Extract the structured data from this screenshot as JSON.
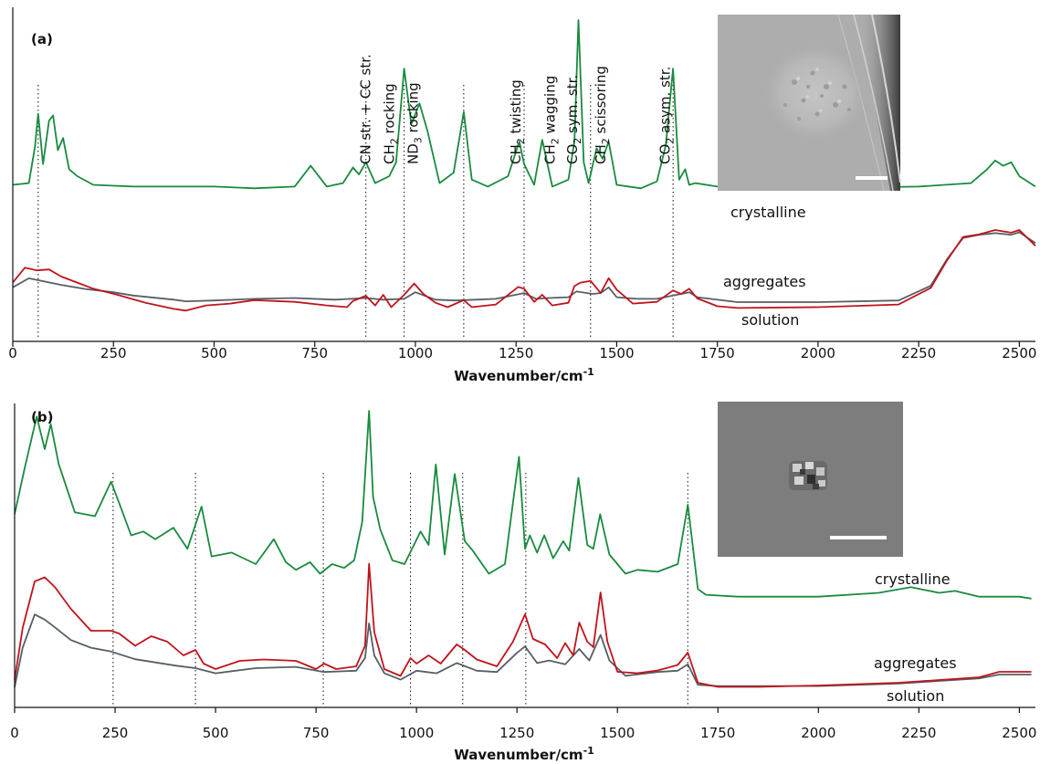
{
  "chart_data": [
    {
      "type": "line",
      "panel_label": "(a)",
      "xlabel": "Wavenumber/cm",
      "xlabel_sup": "-1",
      "ylabel": "",
      "xlim": [
        0,
        2540
      ],
      "ylim": [
        0,
        1
      ],
      "xticks": [
        0,
        250,
        500,
        750,
        1000,
        1250,
        1500,
        1750,
        2000,
        2250,
        2500
      ],
      "dotted_lines": [
        63,
        877,
        972,
        1120,
        1270,
        1435,
        1640
      ],
      "annotations": [
        {
          "at": 877,
          "text": "CN str. + CC str."
        },
        {
          "at": 935,
          "text": "CH",
          "sub": "2",
          "rest": " rocking"
        },
        {
          "at": 995,
          "text": "ND",
          "sub": "3",
          "rest": " rocking"
        },
        {
          "at": 1250,
          "text": "CH",
          "sub": "2",
          "rest": " twisting"
        },
        {
          "at": 1335,
          "text": "CH",
          "sub": "2",
          "rest": " wagging"
        },
        {
          "at": 1390,
          "text": "CO",
          "sub": "2",
          "rest": " sym. str."
        },
        {
          "at": 1460,
          "text": "CH",
          "sub": "2",
          "rest": " scissoring"
        },
        {
          "at": 1620,
          "text": "CO",
          "sub": "2",
          "rest": " asym. str."
        }
      ],
      "series": [
        {
          "name": "crystalline",
          "color": "#1a8a3f",
          "x": [
            0,
            40,
            55,
            63,
            75,
            90,
            100,
            112,
            125,
            140,
            160,
            200,
            300,
            400,
            500,
            600,
            700,
            740,
            780,
            820,
            845,
            860,
            877,
            900,
            935,
            952,
            972,
            990,
            1010,
            1030,
            1060,
            1095,
            1120,
            1140,
            1180,
            1230,
            1258,
            1270,
            1295,
            1315,
            1340,
            1380,
            1395,
            1405,
            1418,
            1430,
            1450,
            1465,
            1480,
            1500,
            1560,
            1600,
            1622,
            1640,
            1655,
            1670,
            1680,
            1695,
            1750,
            2000,
            2250,
            2380,
            2420,
            2440,
            2460,
            2480,
            2500,
            2540
          ],
          "values": [
            0.05,
            0.06,
            0.27,
            0.46,
            0.17,
            0.42,
            0.45,
            0.25,
            0.32,
            0.14,
            0.1,
            0.05,
            0.04,
            0.04,
            0.04,
            0.03,
            0.04,
            0.16,
            0.04,
            0.06,
            0.15,
            0.11,
            0.18,
            0.06,
            0.1,
            0.18,
            0.72,
            0.4,
            0.52,
            0.36,
            0.06,
            0.12,
            0.47,
            0.08,
            0.04,
            0.1,
            0.3,
            0.17,
            0.05,
            0.31,
            0.04,
            0.08,
            0.3,
            1.0,
            0.18,
            0.06,
            0.26,
            0.2,
            0.3,
            0.05,
            0.03,
            0.07,
            0.28,
            0.72,
            0.08,
            0.14,
            0.05,
            0.06,
            0.04,
            0.03,
            0.04,
            0.06,
            0.14,
            0.19,
            0.16,
            0.18,
            0.1,
            0.04
          ]
        },
        {
          "name": "aggregates",
          "color": "#c0141c",
          "x": [
            0,
            30,
            60,
            90,
            120,
            160,
            200,
            260,
            330,
            400,
            430,
            480,
            540,
            600,
            700,
            780,
            830,
            845,
            877,
            900,
            920,
            940,
            972,
            997,
            1020,
            1050,
            1080,
            1120,
            1140,
            1200,
            1255,
            1270,
            1295,
            1315,
            1340,
            1380,
            1395,
            1410,
            1435,
            1460,
            1480,
            1500,
            1540,
            1600,
            1640,
            1660,
            1680,
            1700,
            1750,
            1800,
            2000,
            2200,
            2280,
            2320,
            2360,
            2400,
            2440,
            2480,
            2500,
            2540
          ],
          "values": [
            0.4,
            0.57,
            0.54,
            0.55,
            0.47,
            0.4,
            0.33,
            0.26,
            0.17,
            0.1,
            0.08,
            0.14,
            0.16,
            0.2,
            0.18,
            0.14,
            0.12,
            0.19,
            0.25,
            0.14,
            0.26,
            0.12,
            0.26,
            0.39,
            0.27,
            0.17,
            0.12,
            0.2,
            0.12,
            0.15,
            0.35,
            0.33,
            0.18,
            0.26,
            0.14,
            0.17,
            0.36,
            0.4,
            0.42,
            0.28,
            0.45,
            0.32,
            0.16,
            0.18,
            0.31,
            0.27,
            0.33,
            0.22,
            0.13,
            0.11,
            0.12,
            0.15,
            0.34,
            0.65,
            0.92,
            0.95,
            1.0,
            0.97,
            1.0,
            0.82
          ]
        },
        {
          "name": "solution",
          "color": "#555f66",
          "x": [
            0,
            40,
            80,
            120,
            180,
            250,
            300,
            400,
            430,
            500,
            600,
            700,
            800,
            877,
            920,
            972,
            1000,
            1050,
            1100,
            1150,
            1200,
            1250,
            1270,
            1300,
            1330,
            1380,
            1400,
            1440,
            1460,
            1480,
            1500,
            1550,
            1600,
            1640,
            1680,
            1700,
            1800,
            2000,
            2200,
            2280,
            2320,
            2360,
            2400,
            2440,
            2480,
            2500,
            2540
          ],
          "values": [
            0.28,
            0.39,
            0.35,
            0.31,
            0.26,
            0.22,
            0.18,
            0.13,
            0.11,
            0.12,
            0.14,
            0.15,
            0.13,
            0.15,
            0.13,
            0.14,
            0.22,
            0.13,
            0.12,
            0.13,
            0.14,
            0.19,
            0.21,
            0.14,
            0.15,
            0.16,
            0.23,
            0.2,
            0.21,
            0.28,
            0.16,
            0.14,
            0.14,
            0.18,
            0.22,
            0.16,
            0.1,
            0.1,
            0.12,
            0.3,
            0.62,
            0.88,
            0.92,
            0.94,
            0.92,
            0.95,
            0.82
          ]
        }
      ]
    },
    {
      "type": "line",
      "panel_label": "(b)",
      "xlabel": "Wavenumber/cm",
      "xlabel_sup": "-1",
      "ylabel": "",
      "xlim": [
        0,
        2540
      ],
      "ylim": [
        0,
        1
      ],
      "xticks": [
        0,
        250,
        500,
        750,
        1000,
        1250,
        1500,
        1750,
        2000,
        2250,
        2500
      ],
      "dotted_lines": [
        245,
        450,
        768,
        985,
        1115,
        1272,
        1675
      ],
      "annotations": [],
      "series": [
        {
          "name": "crystalline",
          "color": "#1a8a3f",
          "x": [
            0,
            25,
            55,
            75,
            90,
            110,
            150,
            200,
            240,
            260,
            290,
            320,
            350,
            395,
            430,
            465,
            490,
            540,
            600,
            645,
            675,
            700,
            735,
            760,
            790,
            820,
            845,
            865,
            882,
            892,
            910,
            940,
            970,
            1010,
            1030,
            1048,
            1070,
            1095,
            1120,
            1140,
            1180,
            1220,
            1255,
            1270,
            1282,
            1300,
            1318,
            1340,
            1365,
            1380,
            1403,
            1425,
            1440,
            1457,
            1480,
            1520,
            1550,
            1600,
            1650,
            1675,
            1700,
            1720,
            1800,
            2000,
            2150,
            2230,
            2300,
            2340,
            2400,
            2500,
            2530
          ],
          "values": [
            0.46,
            0.7,
            0.97,
            0.8,
            0.93,
            0.72,
            0.47,
            0.45,
            0.63,
            0.52,
            0.35,
            0.37,
            0.33,
            0.39,
            0.28,
            0.5,
            0.24,
            0.26,
            0.2,
            0.33,
            0.21,
            0.17,
            0.21,
            0.15,
            0.2,
            0.18,
            0.22,
            0.42,
            1.0,
            0.55,
            0.38,
            0.22,
            0.2,
            0.37,
            0.3,
            0.72,
            0.25,
            0.67,
            0.32,
            0.27,
            0.15,
            0.2,
            0.76,
            0.28,
            0.35,
            0.26,
            0.35,
            0.23,
            0.32,
            0.27,
            0.65,
            0.3,
            0.28,
            0.46,
            0.25,
            0.15,
            0.17,
            0.16,
            0.2,
            0.51,
            0.07,
            0.04,
            0.03,
            0.03,
            0.05,
            0.08,
            0.05,
            0.06,
            0.03,
            0.03,
            0.02
          ]
        },
        {
          "name": "aggregates",
          "color": "#c0141c",
          "x": [
            0,
            20,
            50,
            75,
            100,
            140,
            190,
            240,
            260,
            300,
            340,
            380,
            420,
            450,
            470,
            500,
            560,
            620,
            700,
            750,
            770,
            800,
            850,
            872,
            882,
            895,
            920,
            960,
            985,
            1000,
            1030,
            1060,
            1100,
            1120,
            1150,
            1200,
            1240,
            1270,
            1290,
            1320,
            1350,
            1370,
            1390,
            1405,
            1425,
            1440,
            1458,
            1475,
            1500,
            1550,
            1600,
            1650,
            1675,
            1700,
            1750,
            1850,
            2000,
            2200,
            2300,
            2400,
            2450,
            2530
          ],
          "values": [
            0.1,
            0.48,
            0.82,
            0.85,
            0.78,
            0.62,
            0.46,
            0.46,
            0.44,
            0.35,
            0.42,
            0.38,
            0.28,
            0.32,
            0.22,
            0.18,
            0.24,
            0.25,
            0.24,
            0.18,
            0.22,
            0.18,
            0.2,
            0.35,
            0.95,
            0.45,
            0.18,
            0.13,
            0.26,
            0.22,
            0.28,
            0.22,
            0.36,
            0.32,
            0.25,
            0.2,
            0.38,
            0.58,
            0.4,
            0.36,
            0.26,
            0.37,
            0.28,
            0.52,
            0.38,
            0.34,
            0.74,
            0.38,
            0.16,
            0.15,
            0.17,
            0.21,
            0.3,
            0.08,
            0.05,
            0.05,
            0.06,
            0.08,
            0.1,
            0.12,
            0.16,
            0.16
          ]
        },
        {
          "name": "solution",
          "color": "#555f66",
          "x": [
            0,
            20,
            50,
            75,
            100,
            140,
            190,
            240,
            300,
            400,
            450,
            500,
            600,
            700,
            770,
            850,
            872,
            882,
            895,
            920,
            960,
            1000,
            1050,
            1100,
            1150,
            1200,
            1250,
            1270,
            1300,
            1330,
            1370,
            1405,
            1430,
            1458,
            1480,
            1520,
            1600,
            1650,
            1675,
            1700,
            1750,
            1850,
            2000,
            2200,
            2300,
            2400,
            2450,
            2530
          ],
          "values": [
            0.05,
            0.36,
            0.62,
            0.58,
            0.52,
            0.42,
            0.36,
            0.33,
            0.27,
            0.22,
            0.2,
            0.16,
            0.2,
            0.21,
            0.17,
            0.18,
            0.28,
            0.55,
            0.3,
            0.16,
            0.11,
            0.18,
            0.16,
            0.24,
            0.18,
            0.17,
            0.32,
            0.37,
            0.24,
            0.26,
            0.23,
            0.35,
            0.26,
            0.46,
            0.26,
            0.14,
            0.17,
            0.18,
            0.23,
            0.07,
            0.06,
            0.06,
            0.06,
            0.08,
            0.1,
            0.12,
            0.15,
            0.15
          ]
        }
      ]
    }
  ],
  "panels": [
    {
      "series_labels": [
        "crystalline",
        "aggregates",
        "solution"
      ],
      "scale_bar": "white",
      "inset": "microscope image of crystal"
    },
    {
      "series_labels": [
        "crystalline",
        "aggregates",
        "solution"
      ],
      "scale_bar": "white",
      "inset": "microscope image of aggregate"
    }
  ]
}
